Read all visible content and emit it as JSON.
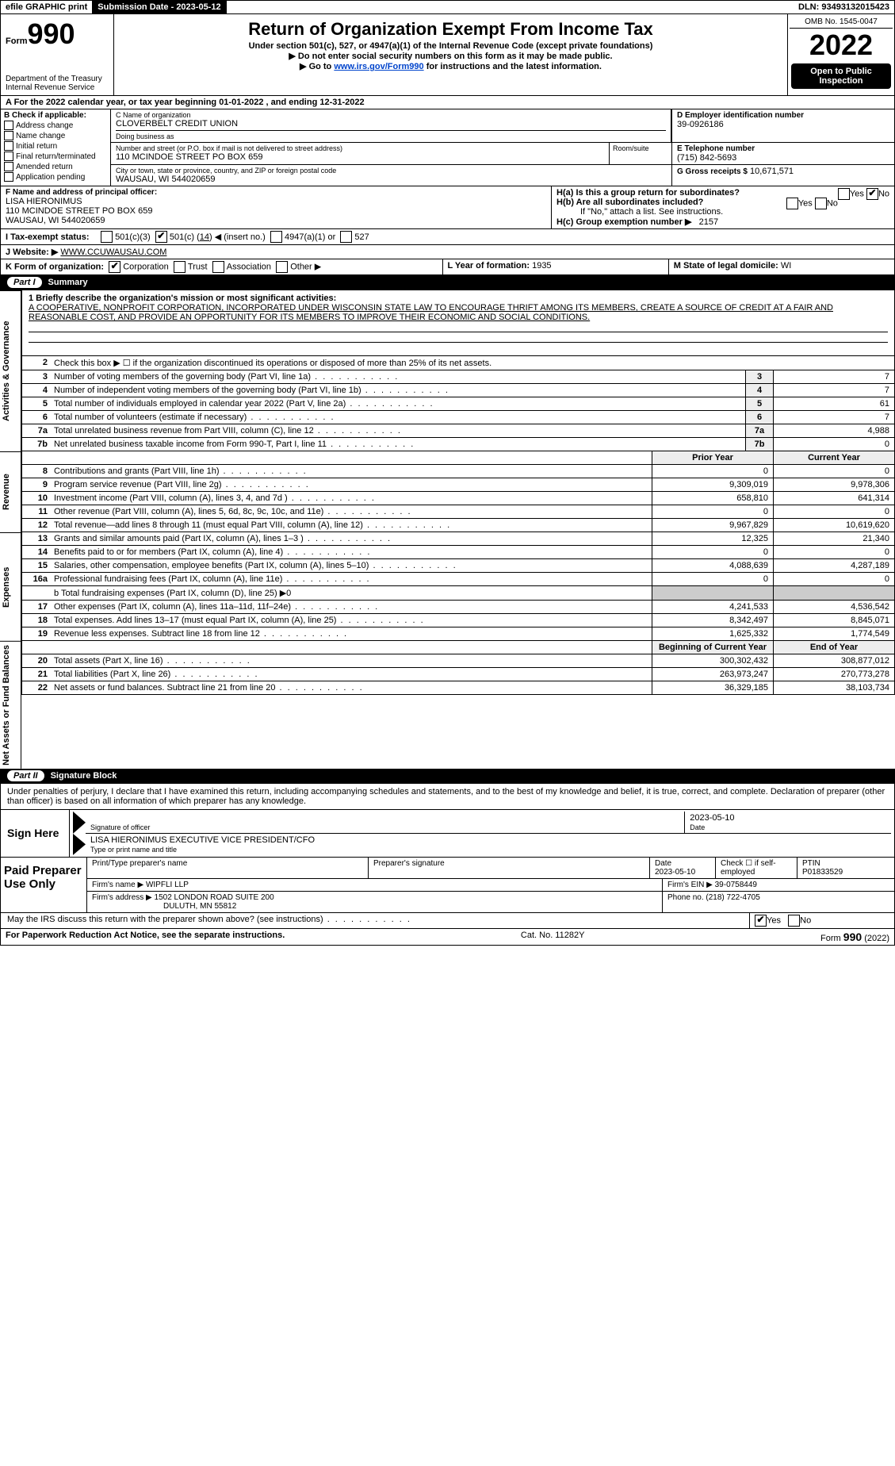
{
  "top": {
    "efile": "efile GRAPHIC print",
    "submission_label": "Submission Date - 2023-05-12",
    "dln": "DLN: 93493132015423"
  },
  "header": {
    "form_prefix": "Form",
    "form_num": "990",
    "dept": "Department of the Treasury\nInternal Revenue Service",
    "title": "Return of Organization Exempt From Income Tax",
    "subtitle": "Under section 501(c), 527, or 4947(a)(1) of the Internal Revenue Code (except private foundations)",
    "note1": "▶ Do not enter social security numbers on this form as it may be made public.",
    "note2_pre": "▶ Go to ",
    "note2_link": "www.irs.gov/Form990",
    "note2_post": " for instructions and the latest information.",
    "omb": "OMB No. 1545-0047",
    "year": "2022",
    "open_public": "Open to Public Inspection"
  },
  "line_a": "A For the 2022 calendar year, or tax year beginning 01-01-2022    , and ending 12-31-2022",
  "b": {
    "label": "B Check if applicable:",
    "items": [
      "Address change",
      "Name change",
      "Initial return",
      "Final return/terminated",
      "Amended return",
      "Application pending"
    ]
  },
  "c": {
    "name_label": "C Name of organization",
    "name": "CLOVERBELT CREDIT UNION",
    "dba_label": "Doing business as",
    "dba": "",
    "street_label": "Number and street (or P.O. box if mail is not delivered to street address)",
    "street": "110 MCINDOE STREET PO BOX 659",
    "room_label": "Room/suite",
    "city_label": "City or town, state or province, country, and ZIP or foreign postal code",
    "city": "WAUSAU, WI  544020659"
  },
  "d": {
    "label": "D Employer identification number",
    "val": "39-0926186"
  },
  "e": {
    "label": "E Telephone number",
    "val": "(715) 842-5693"
  },
  "g": {
    "label": "G Gross receipts $",
    "val": "10,671,571"
  },
  "f": {
    "label": "F  Name and address of principal officer:",
    "name": "LISA HIERONIMUS",
    "addr1": "110 MCINDOE STREET PO BOX 659",
    "addr2": "WAUSAU, WI  544020659"
  },
  "h": {
    "a_label": "H(a)  Is this a group return for subordinates?",
    "a_yes": "Yes",
    "a_no": "No",
    "b_label": "H(b)  Are all subordinates included?",
    "b_yes": "Yes",
    "b_no": "No",
    "b_note": "If \"No,\" attach a list. See instructions.",
    "c_label": "H(c)  Group exemption number ▶",
    "c_val": "2157"
  },
  "i": {
    "label": "I   Tax-exempt status:",
    "o1": "501(c)(3)",
    "o2_pre": "501(c) (",
    "o2_val": "14",
    "o2_post": ") ◀ (insert no.)",
    "o3": "4947(a)(1) or",
    "o4": "527"
  },
  "j": {
    "label": "J   Website: ▶",
    "val": "WWW.CCUWAUSAU.COM"
  },
  "k": {
    "label": "K Form of organization:",
    "o1": "Corporation",
    "o2": "Trust",
    "o3": "Association",
    "o4": "Other ▶"
  },
  "l": {
    "label": "L Year of formation:",
    "val": "1935"
  },
  "m": {
    "label": "M State of legal domicile:",
    "val": "WI"
  },
  "parts": {
    "p1_no": "Part I",
    "p1_title": "Summary",
    "p2_no": "Part II",
    "p2_title": "Signature Block"
  },
  "vtabs": {
    "ag": "Activities & Governance",
    "rev": "Revenue",
    "exp": "Expenses",
    "na": "Net Assets or Fund Balances"
  },
  "p1": {
    "l1_label": "1  Briefly describe the organization's mission or most significant activities:",
    "l1_text": "A COOPERATIVE, NONPROFIT CORPORATION, INCORPORATED UNDER WISCONSIN STATE LAW TO ENCOURAGE THRIFT AMONG ITS MEMBERS, CREATE A SOURCE OF CREDIT AT A FAIR AND REASONABLE COST, AND PROVIDE AN OPPORTUNITY FOR ITS MEMBERS TO IMPROVE THEIR ECONOMIC AND SOCIAL CONDITIONS.",
    "l2": "Check this box ▶ ☐  if the organization discontinued its operations or disposed of more than 25% of its net assets.",
    "lines_single": [
      {
        "n": "3",
        "d": "Number of voting members of the governing body (Part VI, line 1a)",
        "box": "3",
        "v": "7"
      },
      {
        "n": "4",
        "d": "Number of independent voting members of the governing body (Part VI, line 1b)",
        "box": "4",
        "v": "7"
      },
      {
        "n": "5",
        "d": "Total number of individuals employed in calendar year 2022 (Part V, line 2a)",
        "box": "5",
        "v": "61"
      },
      {
        "n": "6",
        "d": "Total number of volunteers (estimate if necessary)",
        "box": "6",
        "v": "7"
      },
      {
        "n": "7a",
        "d": "Total unrelated business revenue from Part VIII, column (C), line 12",
        "box": "7a",
        "v": "4,988"
      },
      {
        "n": "7b",
        "d": "Net unrelated business taxable income from Form 990-T, Part I, line 11",
        "box": "7b",
        "v": "0"
      }
    ],
    "col_hdr_prior": "Prior Year",
    "col_hdr_current": "Current Year",
    "rev_lines": [
      {
        "n": "8",
        "d": "Contributions and grants (Part VIII, line 1h)",
        "p": "0",
        "c": "0"
      },
      {
        "n": "9",
        "d": "Program service revenue (Part VIII, line 2g)",
        "p": "9,309,019",
        "c": "9,978,306"
      },
      {
        "n": "10",
        "d": "Investment income (Part VIII, column (A), lines 3, 4, and 7d )",
        "p": "658,810",
        "c": "641,314"
      },
      {
        "n": "11",
        "d": "Other revenue (Part VIII, column (A), lines 5, 6d, 8c, 9c, 10c, and 11e)",
        "p": "0",
        "c": "0"
      },
      {
        "n": "12",
        "d": "Total revenue—add lines 8 through 11 (must equal Part VIII, column (A), line 12)",
        "p": "9,967,829",
        "c": "10,619,620"
      }
    ],
    "exp_lines": [
      {
        "n": "13",
        "d": "Grants and similar amounts paid (Part IX, column (A), lines 1–3 )",
        "p": "12,325",
        "c": "21,340"
      },
      {
        "n": "14",
        "d": "Benefits paid to or for members (Part IX, column (A), line 4)",
        "p": "0",
        "c": "0"
      },
      {
        "n": "15",
        "d": "Salaries, other compensation, employee benefits (Part IX, column (A), lines 5–10)",
        "p": "4,088,639",
        "c": "4,287,189"
      },
      {
        "n": "16a",
        "d": "Professional fundraising fees (Part IX, column (A), line 11e)",
        "p": "0",
        "c": "0"
      }
    ],
    "l16b": "b  Total fundraising expenses (Part IX, column (D), line 25) ▶0",
    "exp_lines2": [
      {
        "n": "17",
        "d": "Other expenses (Part IX, column (A), lines 11a–11d, 11f–24e)",
        "p": "4,241,533",
        "c": "4,536,542"
      },
      {
        "n": "18",
        "d": "Total expenses. Add lines 13–17 (must equal Part IX, column (A), line 25)",
        "p": "8,342,497",
        "c": "8,845,071"
      },
      {
        "n": "19",
        "d": "Revenue less expenses. Subtract line 18 from line 12",
        "p": "1,625,332",
        "c": "1,774,549"
      }
    ],
    "col_hdr_beg": "Beginning of Current Year",
    "col_hdr_end": "End of Year",
    "na_lines": [
      {
        "n": "20",
        "d": "Total assets (Part X, line 16)",
        "p": "300,302,432",
        "c": "308,877,012"
      },
      {
        "n": "21",
        "d": "Total liabilities (Part X, line 26)",
        "p": "263,973,247",
        "c": "270,773,278"
      },
      {
        "n": "22",
        "d": "Net assets or fund balances. Subtract line 21 from line 20",
        "p": "36,329,185",
        "c": "38,103,734"
      }
    ]
  },
  "p2": {
    "intro": "Under penalties of perjury, I declare that I have examined this return, including accompanying schedules and statements, and to the best of my knowledge and belief, it is true, correct, and complete. Declaration of preparer (other than officer) is based on all information of which preparer has any knowledge.",
    "sign_here": "Sign Here",
    "sig_officer_lbl": "Signature of officer",
    "sig_date": "2023-05-10",
    "sig_date_lbl": "Date",
    "name_title": "LISA HIERONIMUS  EXECUTIVE VICE PRESIDENT/CFO",
    "name_title_lbl": "Type or print name and title",
    "paid_label": "Paid Preparer Use Only",
    "prep_name_lbl": "Print/Type preparer's name",
    "prep_name": "",
    "prep_sig_lbl": "Preparer's signature",
    "prep_date_lbl": "Date",
    "prep_date": "2023-05-10",
    "check_self_lbl": "Check ☐ if self-employed",
    "ptin_lbl": "PTIN",
    "ptin": "P01833529",
    "firm_name_lbl": "Firm's name    ▶",
    "firm_name": "WIPFLI LLP",
    "firm_ein_lbl": "Firm's EIN ▶",
    "firm_ein": "39-0758449",
    "firm_addr_lbl": "Firm's address ▶",
    "firm_addr1": "1502 LONDON ROAD SUITE 200",
    "firm_addr2": "DULUTH, MN  55812",
    "firm_phone_lbl": "Phone no.",
    "firm_phone": "(218) 722-4705",
    "discuss": "May the IRS discuss this return with the preparer shown above? (see instructions)",
    "discuss_yes": "Yes",
    "discuss_no": "No"
  },
  "footer": {
    "left": "For Paperwork Reduction Act Notice, see the separate instructions.",
    "mid": "Cat. No. 11282Y",
    "right_pre": "Form ",
    "right_form": "990",
    "right_post": " (2022)"
  }
}
